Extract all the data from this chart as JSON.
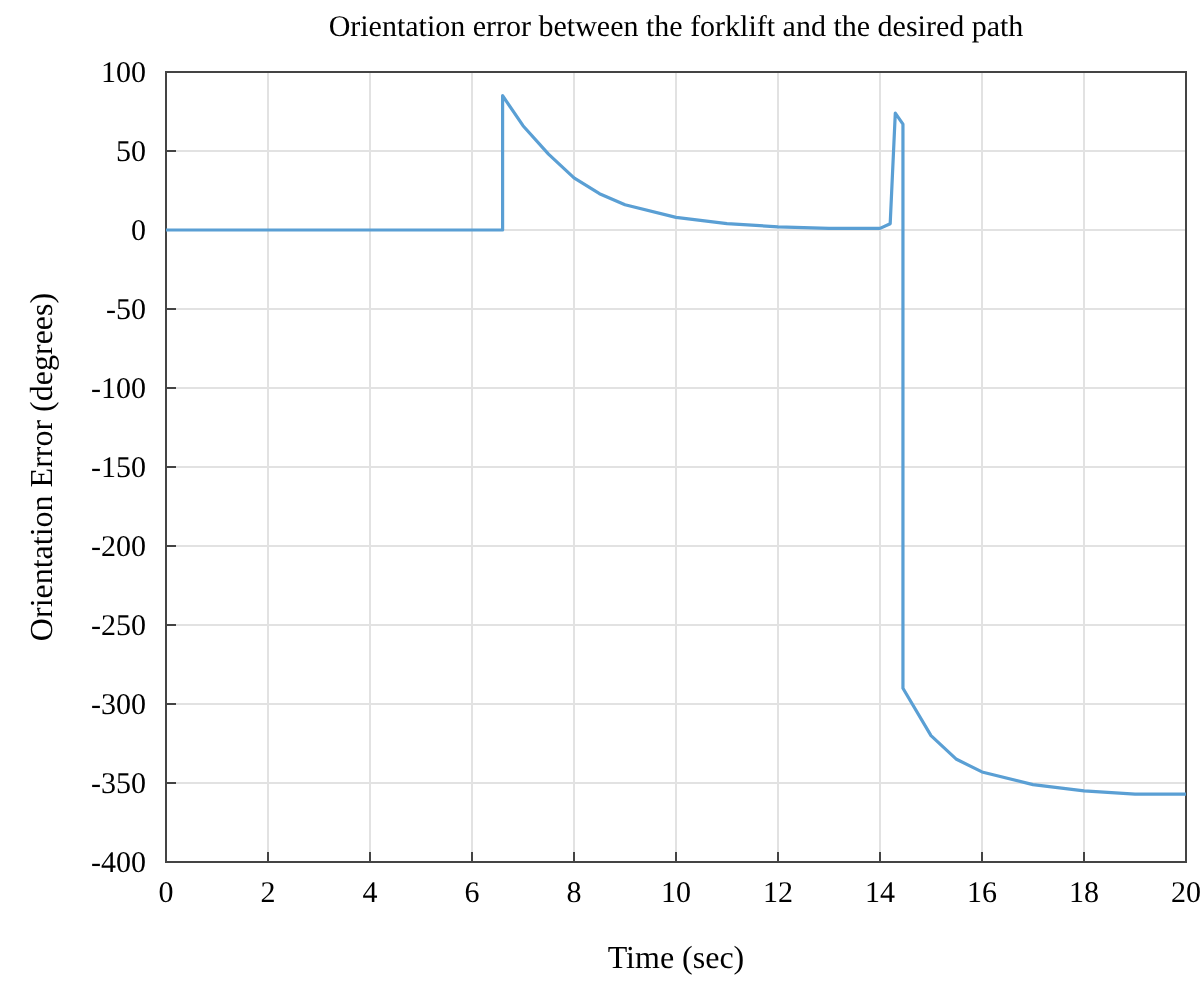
{
  "chart_data": {
    "type": "line",
    "title": "Orientation error between the forklift and the desired path",
    "xlabel": "Time (sec)",
    "ylabel": "Orientation Error (degrees)",
    "xlim": [
      0,
      20
    ],
    "xticks": [
      0,
      2,
      4,
      6,
      8,
      10,
      12,
      14,
      16,
      18,
      20
    ],
    "ylim": [
      -400,
      100
    ],
    "yticks": [
      -400,
      -350,
      -300,
      -250,
      -200,
      -150,
      -100,
      -50,
      0,
      50,
      100
    ],
    "grid": true,
    "series": [
      {
        "color": "#5a9fd4",
        "x": [
          0,
          6.6,
          6.6,
          7,
          7.5,
          8,
          8.5,
          9,
          10,
          11,
          12,
          13,
          14,
          14.2,
          14.3,
          14.45,
          14.45,
          15,
          15.5,
          16,
          17,
          18,
          19,
          20
        ],
        "values": [
          0,
          0,
          85,
          66,
          48,
          33,
          23,
          16,
          8,
          4,
          2,
          1,
          1,
          4,
          74,
          67,
          -290,
          -320,
          -335,
          -343,
          -351,
          -355,
          -357,
          -357
        ]
      }
    ]
  }
}
